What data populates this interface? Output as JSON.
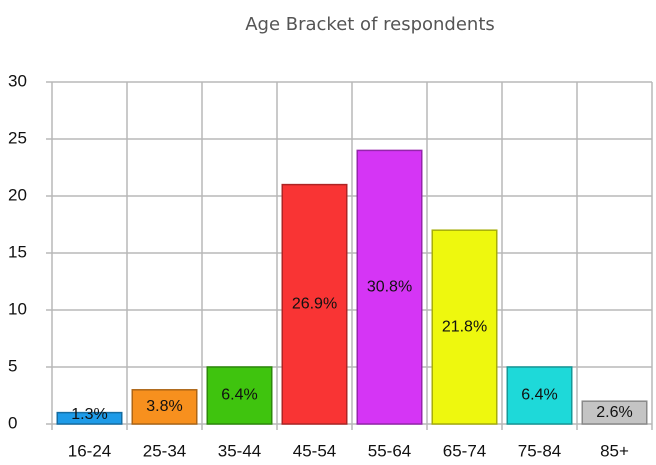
{
  "chart_data": {
    "type": "bar",
    "title": "Age Bracket of respondents",
    "categories": [
      "16-24",
      "25-34",
      "35-44",
      "45-54",
      "55-64",
      "65-74",
      "75-84",
      "85+"
    ],
    "values": [
      1,
      3,
      5,
      21,
      24,
      17,
      5,
      2
    ],
    "value_labels": [
      "1.3%",
      "3.8%",
      "6.4%",
      "26.9%",
      "30.8%",
      "21.8%",
      "6.4%",
      "2.6%"
    ],
    "colors": [
      "#1e9be8",
      "#f7901e",
      "#3fc40e",
      "#f93434",
      "#d535f5",
      "#eef80e",
      "#1ed9d9",
      "#c4c4c4"
    ],
    "ylim": [
      0,
      30
    ],
    "yticks": [
      0,
      5,
      10,
      15,
      20,
      25,
      30
    ],
    "grid": true
  }
}
